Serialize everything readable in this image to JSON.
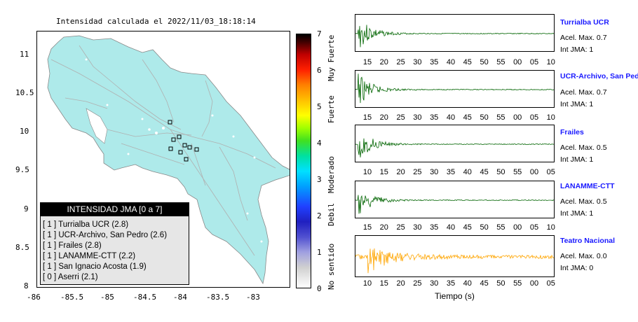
{
  "map": {
    "title": "Intensidad calculada el 2022/11/03_18:18:14",
    "y_ticks": [
      "11",
      "10.5",
      "10",
      "9.5",
      "9",
      "8.5",
      "8"
    ],
    "x_ticks": [
      "-86",
      "-85.5",
      "-85",
      "-84.5",
      "-84",
      "-83.5",
      "-83"
    ]
  },
  "legend": {
    "title": "INTENSIDAD JMA [0 a 7]",
    "rows": [
      {
        "text": "[ 1 ]  Turrialba UCR (2.8)"
      },
      {
        "text": "[ 1 ]  UCR-Archivo, San Pedro (2.6)"
      },
      {
        "text": "[ 1 ]  Frailes (2.8)"
      },
      {
        "text": "[ 1 ]  LANAMME-CTT (2.2)"
      },
      {
        "text": "[ 1 ]  San Ignacio Acosta (1.9)"
      },
      {
        "text": "[ 0 ]  Aserri (2.1)"
      }
    ]
  },
  "colorbar": {
    "ticks": [
      "7",
      "6",
      "5",
      "4",
      "3",
      "2",
      "1",
      "0"
    ],
    "words": [
      "Muy Fuerte",
      "Fuerte",
      "Moderado",
      "Debil",
      "No sentido"
    ]
  },
  "traces": [
    {
      "name": "Turrialba UCR",
      "acel": "Acel. Max. 0.7",
      "int": "Int JMA: 1",
      "color": "#006400",
      "ticks": [
        "15",
        "20",
        "25",
        "30",
        "35",
        "40",
        "45",
        "50",
        "55",
        "00",
        "05",
        "10"
      ]
    },
    {
      "name": "UCR-Archivo, San Pedro",
      "acel": "Acel. Max. 0.7",
      "int": "Int JMA: 1",
      "color": "#006400",
      "ticks": [
        "15",
        "20",
        "25",
        "30",
        "35",
        "40",
        "45",
        "50",
        "55",
        "00",
        "05",
        "10"
      ]
    },
    {
      "name": "Frailes",
      "acel": "Acel. Max. 0.5",
      "int": "Int JMA: 1",
      "color": "#006400",
      "ticks": [
        "10",
        "15",
        "20",
        "25",
        "30",
        "35",
        "40",
        "45",
        "50",
        "55",
        "00",
        "05"
      ]
    },
    {
      "name": "LANAMME-CTT",
      "acel": "Acel. Max. 0.5",
      "int": "Int JMA: 1",
      "color": "#006400",
      "ticks": [
        "15",
        "20",
        "25",
        "30",
        "35",
        "40",
        "45",
        "50",
        "55",
        "00",
        "05",
        "10"
      ]
    },
    {
      "name": "Teatro Nacional",
      "acel": "Acel. Max. 0.0",
      "int": "Int JMA: 0",
      "color": "#ffa500",
      "ticks": [
        "10",
        "15",
        "20",
        "25",
        "30",
        "35",
        "40",
        "45",
        "50",
        "55",
        "00",
        "05"
      ]
    }
  ],
  "xlabel": "Tiempo (s)",
  "colors": {
    "land": "#aeeaea",
    "highlight_text": "#1a1aff"
  }
}
